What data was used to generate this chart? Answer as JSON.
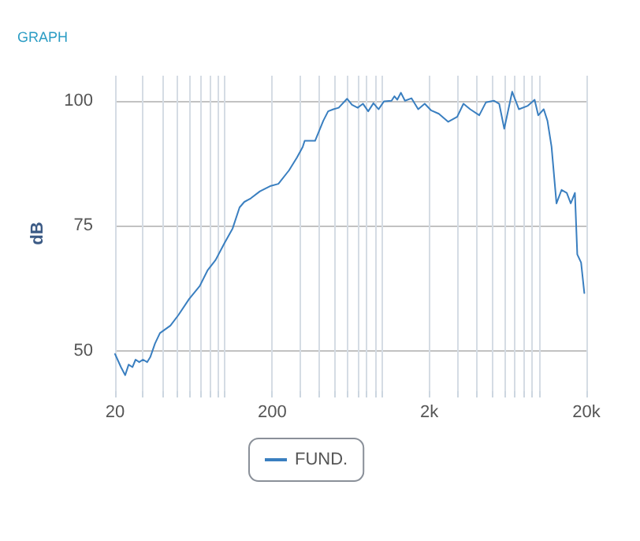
{
  "chart_data": {
    "type": "line",
    "title": "GRAPH",
    "ylabel": "dB",
    "log": "x",
    "grid": true,
    "legend": "bottom",
    "marker": "none",
    "line_style": "solid",
    "xlim": [
      20,
      20000
    ],
    "ylim": [
      42,
      105
    ],
    "xticks": [
      20,
      {
        "value": 30,
        "label": null
      },
      {
        "value": 40,
        "label": null
      },
      {
        "value": 50,
        "label": null
      },
      {
        "value": 60,
        "label": null
      },
      {
        "value": 70,
        "label": null
      },
      {
        "value": 80,
        "label": null
      },
      {
        "value": 90,
        "label": null
      },
      {
        "value": 100,
        "label": null
      },
      200,
      {
        "value": 300,
        "label": null
      },
      {
        "value": 400,
        "label": null
      },
      {
        "value": 500,
        "label": null
      },
      {
        "value": 600,
        "label": null
      },
      {
        "value": 700,
        "label": null
      },
      {
        "value": 800,
        "label": null
      },
      {
        "value": 900,
        "label": null
      },
      {
        "value": 1000,
        "label": null
      },
      {
        "value": 2000,
        "label": "2k"
      },
      {
        "value": 3000,
        "label": null
      },
      {
        "value": 4000,
        "label": null
      },
      {
        "value": 5000,
        "label": null
      },
      {
        "value": 6000,
        "label": null
      },
      {
        "value": 7000,
        "label": null
      },
      {
        "value": 8000,
        "label": null
      },
      {
        "value": 9000,
        "label": null
      },
      {
        "value": 10000,
        "label": null
      },
      {
        "value": 20000,
        "label": "20k"
      }
    ],
    "yticks": [
      50,
      75,
      100
    ],
    "series": [
      {
        "name": "FUND.",
        "color": "#3a7fc0",
        "x": [
          20,
          21.8,
          23.2,
          24.4,
          25.8,
          27,
          28.5,
          30.1,
          32,
          33.5,
          35.9,
          38.6,
          45,
          50.6,
          59.2,
          69.2,
          77.5,
          87.3,
          98.8,
          112,
          124,
          133,
          146,
          167,
          196,
          219,
          256,
          288,
          313,
          322,
          375,
          423,
          454,
          491,
          530,
          599,
          644,
          700,
          757,
          817,
          882,
          952,
          1030,
          1150,
          1200,
          1250,
          1320,
          1400,
          1540,
          1700,
          1870,
          2050,
          2300,
          2640,
          3010,
          3300,
          3640,
          4160,
          4590,
          5150,
          5570,
          6000,
          6740,
          7440,
          8480,
          9360,
          9880,
          10700,
          11300,
          12000,
          12900,
          13900,
          15000,
          15900,
          16900,
          17500,
          18500,
          19400
        ],
        "values": [
          49.4,
          46.8,
          45.2,
          47.3,
          46.8,
          48.3,
          47.8,
          48.3,
          47.8,
          48.8,
          51.5,
          53.6,
          55.1,
          57.2,
          60.4,
          63,
          66.1,
          68.2,
          71.4,
          74.5,
          78.7,
          79.8,
          80.5,
          81.9,
          83,
          83.4,
          86.1,
          88.7,
          90.8,
          92,
          92,
          96,
          97.9,
          98.3,
          98.6,
          100.4,
          99.2,
          98.6,
          99.4,
          97.9,
          99.5,
          98.3,
          99.9,
          100,
          100.9,
          100.2,
          101.6,
          100,
          100.5,
          98.3,
          99.4,
          98.1,
          97.4,
          95.8,
          96.8,
          99.4,
          98.3,
          97.1,
          99.7,
          100,
          99.4,
          94.4,
          101.8,
          98.3,
          99,
          100.2,
          97.1,
          98.3,
          96,
          90.8,
          79.5,
          82.2,
          81.6,
          79.5,
          81.6,
          69.3,
          67.7,
          61.6
        ]
      }
    ]
  }
}
